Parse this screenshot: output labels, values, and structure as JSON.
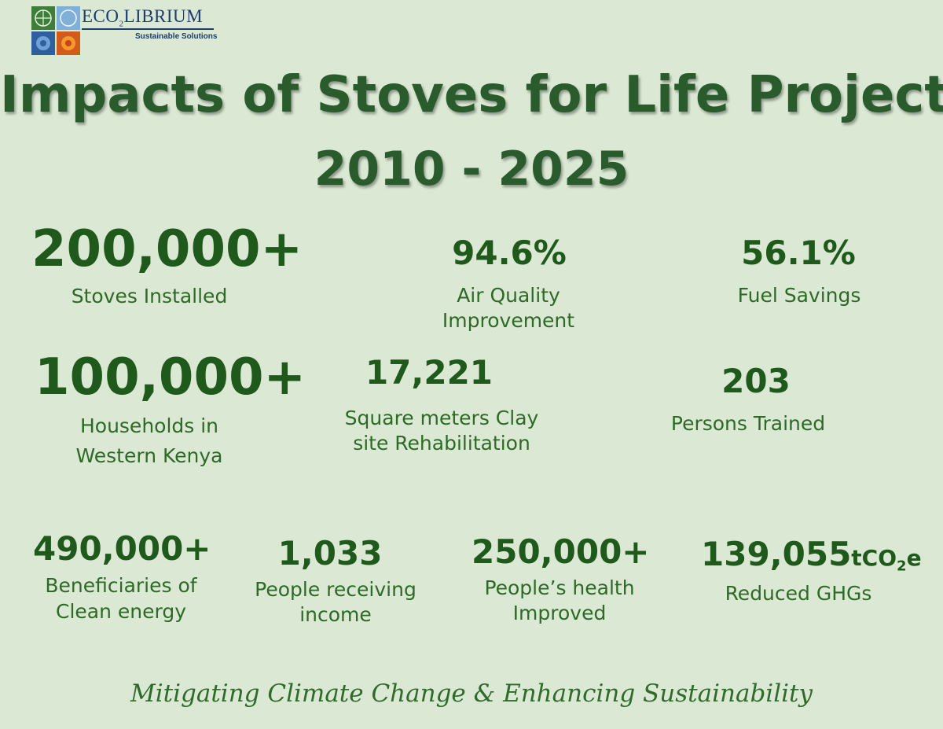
{
  "logo": {
    "name_prefix": "ECO",
    "name_sub": "2",
    "name_suffix": "LIBRIUM",
    "tagline": "Sustainable Solutions"
  },
  "title": {
    "line1": "Impacts of Stoves for Life Project",
    "line2": "2010 - 2025"
  },
  "stats": {
    "stoves": {
      "value": "200,000+",
      "label1": "Stoves Installed"
    },
    "air": {
      "value": "94.6%",
      "label1": "Air Quality",
      "label2": "Improvement"
    },
    "fuel": {
      "value": "56.1%",
      "label1": "Fuel Savings"
    },
    "households": {
      "value": "100,000+",
      "label1": "Households in",
      "label2": "Western Kenya"
    },
    "clay": {
      "value": "17,221",
      "label1": "Square meters Clay",
      "label2": "site Rehabilitation"
    },
    "trained": {
      "value": "203",
      "label1": "Persons Trained"
    },
    "beneficiaries": {
      "value": "490,000+",
      "label1": "Beneficiaries of",
      "label2": "Clean energy"
    },
    "income": {
      "value": "1,033",
      "label1": "People receiving",
      "label2": "income"
    },
    "health": {
      "value": "250,000+",
      "label1": "People’s  health",
      "label2": "Improved"
    },
    "ghg": {
      "value": "139,055",
      "unit_prefix": "tCO",
      "unit_sub": "2",
      "unit_suffix": "e",
      "label1": "Reduced GHGs"
    }
  },
  "footer": {
    "tagline": "Mitigating Climate Change & Enhancing Sustainability"
  }
}
